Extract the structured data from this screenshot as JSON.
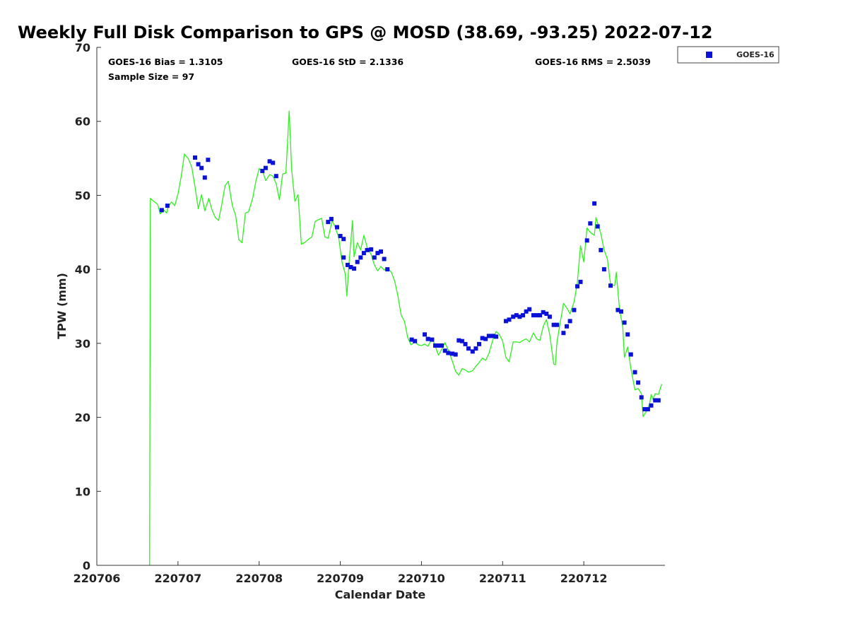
{
  "chart_data": {
    "type": "scatter",
    "title": "Weekly Full Disk Comparison to GPS @ MOSD (38.69, -93.25) 2022-07-12",
    "xlabel": "Calendar Date",
    "ylabel": "TPW (mm)",
    "xlim": [
      0,
      7
    ],
    "ylim": [
      0,
      70
    ],
    "x_tick_labels": [
      "220706",
      "220707",
      "220708",
      "220709",
      "220710",
      "220711",
      "220712"
    ],
    "x_tick_positions": [
      0,
      1,
      2,
      3,
      4,
      5,
      6
    ],
    "y_ticks": [
      0,
      10,
      20,
      30,
      40,
      50,
      60,
      70
    ],
    "stats": {
      "bias": "GOES-16 Bias = 1.3105",
      "std": "GOES-16 StD = 2.1336",
      "rms": "GOES-16 RMS = 2.5039",
      "sample": "Sample Size = 97"
    },
    "legend": {
      "label": "GOES-16",
      "position": "top-right-outside"
    },
    "colors": {
      "goes": "#0a12d8",
      "gps": "#2ef01f"
    },
    "series": [
      {
        "name": "GOES-16",
        "marker": "square",
        "points": [
          [
            0.8,
            48.0
          ],
          [
            0.87,
            48.6
          ],
          [
            1.21,
            55.1
          ],
          [
            1.25,
            54.2
          ],
          [
            1.29,
            53.7
          ],
          [
            1.33,
            52.4
          ],
          [
            1.37,
            54.8
          ],
          [
            2.04,
            53.3
          ],
          [
            2.08,
            53.7
          ],
          [
            2.13,
            54.6
          ],
          [
            2.17,
            54.4
          ],
          [
            2.21,
            52.6
          ],
          [
            2.85,
            46.4
          ],
          [
            2.89,
            46.8
          ],
          [
            2.96,
            45.7
          ],
          [
            3.0,
            44.5
          ],
          [
            3.04,
            44.1
          ],
          [
            3.04,
            41.6
          ],
          [
            3.09,
            40.6
          ],
          [
            3.13,
            40.3
          ],
          [
            3.17,
            40.1
          ],
          [
            3.21,
            41.0
          ],
          [
            3.25,
            41.6
          ],
          [
            3.29,
            42.2
          ],
          [
            3.33,
            42.6
          ],
          [
            3.38,
            42.7
          ],
          [
            3.42,
            41.6
          ],
          [
            3.46,
            42.2
          ],
          [
            3.5,
            42.4
          ],
          [
            3.54,
            41.4
          ],
          [
            3.58,
            40.0
          ],
          [
            3.88,
            30.5
          ],
          [
            3.92,
            30.3
          ],
          [
            4.04,
            31.2
          ],
          [
            4.08,
            30.6
          ],
          [
            4.13,
            30.5
          ],
          [
            4.17,
            29.7
          ],
          [
            4.21,
            29.7
          ],
          [
            4.25,
            29.7
          ],
          [
            4.29,
            29.0
          ],
          [
            4.33,
            28.7
          ],
          [
            4.38,
            28.6
          ],
          [
            4.42,
            28.5
          ],
          [
            4.46,
            30.4
          ],
          [
            4.5,
            30.3
          ],
          [
            4.54,
            29.9
          ],
          [
            4.58,
            29.3
          ],
          [
            4.63,
            28.9
          ],
          [
            4.67,
            29.3
          ],
          [
            4.71,
            29.9
          ],
          [
            4.75,
            30.7
          ],
          [
            4.79,
            30.6
          ],
          [
            4.83,
            31.0
          ],
          [
            4.88,
            31.0
          ],
          [
            4.92,
            30.9
          ],
          [
            5.04,
            33.0
          ],
          [
            5.08,
            33.2
          ],
          [
            5.13,
            33.6
          ],
          [
            5.17,
            33.8
          ],
          [
            5.21,
            33.6
          ],
          [
            5.25,
            33.8
          ],
          [
            5.29,
            34.3
          ],
          [
            5.33,
            34.6
          ],
          [
            5.38,
            33.8
          ],
          [
            5.42,
            33.8
          ],
          [
            5.46,
            33.8
          ],
          [
            5.5,
            34.2
          ],
          [
            5.54,
            34.0
          ],
          [
            5.58,
            33.6
          ],
          [
            5.63,
            32.5
          ],
          [
            5.67,
            32.5
          ],
          [
            5.75,
            31.4
          ],
          [
            5.79,
            32.3
          ],
          [
            5.83,
            33.0
          ],
          [
            5.88,
            34.5
          ],
          [
            5.92,
            37.7
          ],
          [
            5.96,
            38.3
          ],
          [
            6.04,
            43.9
          ],
          [
            6.08,
            46.2
          ],
          [
            6.13,
            48.9
          ],
          [
            6.17,
            45.8
          ],
          [
            6.21,
            42.6
          ],
          [
            6.25,
            40.0
          ],
          [
            6.33,
            37.8
          ],
          [
            6.42,
            34.5
          ],
          [
            6.46,
            34.3
          ],
          [
            6.5,
            32.8
          ],
          [
            6.54,
            31.2
          ],
          [
            6.58,
            28.5
          ],
          [
            6.63,
            26.1
          ],
          [
            6.67,
            24.7
          ],
          [
            6.71,
            22.7
          ],
          [
            6.75,
            21.1
          ],
          [
            6.79,
            21.1
          ],
          [
            6.83,
            21.6
          ],
          [
            6.88,
            22.3
          ],
          [
            6.92,
            22.3
          ]
        ]
      },
      {
        "name": "GPS",
        "line": true,
        "points": [
          [
            0.65,
            0.0
          ],
          [
            0.66,
            49.6
          ],
          [
            0.7,
            49.2
          ],
          [
            0.75,
            48.8
          ],
          [
            0.78,
            47.5
          ],
          [
            0.83,
            48.0
          ],
          [
            0.86,
            47.6
          ],
          [
            0.88,
            48.5
          ],
          [
            0.92,
            49.1
          ],
          [
            0.96,
            48.6
          ],
          [
            1.0,
            50.2
          ],
          [
            1.04,
            52.6
          ],
          [
            1.08,
            55.6
          ],
          [
            1.13,
            54.9
          ],
          [
            1.17,
            53.8
          ],
          [
            1.21,
            51.1
          ],
          [
            1.25,
            48.2
          ],
          [
            1.29,
            50.1
          ],
          [
            1.33,
            47.9
          ],
          [
            1.38,
            49.6
          ],
          [
            1.42,
            48.0
          ],
          [
            1.46,
            47.0
          ],
          [
            1.5,
            46.6
          ],
          [
            1.54,
            48.8
          ],
          [
            1.58,
            51.3
          ],
          [
            1.62,
            51.9
          ],
          [
            1.67,
            48.6
          ],
          [
            1.71,
            47.3
          ],
          [
            1.75,
            44.0
          ],
          [
            1.79,
            43.6
          ],
          [
            1.83,
            47.6
          ],
          [
            1.87,
            47.8
          ],
          [
            1.92,
            49.6
          ],
          [
            1.96,
            51.9
          ],
          [
            2.0,
            53.6
          ],
          [
            2.04,
            53.4
          ],
          [
            2.08,
            52.0
          ],
          [
            2.13,
            52.8
          ],
          [
            2.17,
            52.6
          ],
          [
            2.21,
            51.6
          ],
          [
            2.25,
            49.4
          ],
          [
            2.29,
            52.9
          ],
          [
            2.33,
            53.0
          ],
          [
            2.37,
            61.4
          ],
          [
            2.4,
            53.5
          ],
          [
            2.44,
            49.2
          ],
          [
            2.48,
            50.1
          ],
          [
            2.52,
            43.4
          ],
          [
            2.56,
            43.6
          ],
          [
            2.6,
            44.0
          ],
          [
            2.65,
            44.4
          ],
          [
            2.69,
            46.5
          ],
          [
            2.73,
            46.7
          ],
          [
            2.77,
            46.9
          ],
          [
            2.81,
            44.4
          ],
          [
            2.85,
            44.2
          ],
          [
            2.9,
            46.6
          ],
          [
            2.94,
            45.6
          ],
          [
            2.98,
            44.3
          ],
          [
            3.02,
            41.0
          ],
          [
            3.06,
            39.4
          ],
          [
            3.08,
            36.4
          ],
          [
            3.11,
            41.2
          ],
          [
            3.13,
            43.8
          ],
          [
            3.15,
            46.6
          ],
          [
            3.17,
            41.7
          ],
          [
            3.21,
            43.6
          ],
          [
            3.25,
            42.6
          ],
          [
            3.29,
            44.6
          ],
          [
            3.33,
            43.0
          ],
          [
            3.38,
            42.0
          ],
          [
            3.42,
            40.6
          ],
          [
            3.46,
            39.8
          ],
          [
            3.5,
            40.4
          ],
          [
            3.54,
            39.9
          ],
          [
            3.58,
            40.2
          ],
          [
            3.63,
            39.6
          ],
          [
            3.67,
            38.4
          ],
          [
            3.71,
            36.4
          ],
          [
            3.75,
            33.8
          ],
          [
            3.79,
            33.0
          ],
          [
            3.83,
            30.8
          ],
          [
            3.87,
            29.8
          ],
          [
            3.92,
            30.2
          ],
          [
            3.96,
            29.8
          ],
          [
            4.0,
            29.7
          ],
          [
            4.04,
            29.9
          ],
          [
            4.08,
            29.6
          ],
          [
            4.13,
            30.7
          ],
          [
            4.17,
            29.6
          ],
          [
            4.21,
            28.4
          ],
          [
            4.25,
            29.2
          ],
          [
            4.29,
            30.1
          ],
          [
            4.33,
            29.1
          ],
          [
            4.38,
            27.6
          ],
          [
            4.42,
            26.2
          ],
          [
            4.46,
            25.7
          ],
          [
            4.5,
            26.6
          ],
          [
            4.54,
            26.4
          ],
          [
            4.58,
            26.1
          ],
          [
            4.63,
            26.3
          ],
          [
            4.67,
            26.9
          ],
          [
            4.71,
            27.4
          ],
          [
            4.75,
            28.0
          ],
          [
            4.79,
            27.7
          ],
          [
            4.83,
            28.6
          ],
          [
            4.88,
            30.5
          ],
          [
            4.92,
            31.6
          ],
          [
            4.96,
            31.2
          ],
          [
            5.0,
            30.3
          ],
          [
            5.04,
            28.1
          ],
          [
            5.08,
            27.5
          ],
          [
            5.13,
            30.2
          ],
          [
            5.17,
            30.2
          ],
          [
            5.21,
            30.1
          ],
          [
            5.25,
            30.4
          ],
          [
            5.29,
            30.6
          ],
          [
            5.33,
            30.2
          ],
          [
            5.38,
            31.4
          ],
          [
            5.42,
            30.6
          ],
          [
            5.46,
            30.4
          ],
          [
            5.5,
            32.3
          ],
          [
            5.54,
            33.2
          ],
          [
            5.58,
            31.2
          ],
          [
            5.63,
            27.2
          ],
          [
            5.65,
            27.1
          ],
          [
            5.67,
            30.2
          ],
          [
            5.71,
            32.8
          ],
          [
            5.75,
            35.4
          ],
          [
            5.79,
            34.8
          ],
          [
            5.83,
            34.0
          ],
          [
            5.88,
            35.6
          ],
          [
            5.92,
            38.2
          ],
          [
            5.96,
            43.2
          ],
          [
            6.0,
            41.0
          ],
          [
            6.04,
            45.6
          ],
          [
            6.08,
            45.0
          ],
          [
            6.13,
            44.6
          ],
          [
            6.15,
            47.0
          ],
          [
            6.21,
            44.8
          ],
          [
            6.25,
            42.6
          ],
          [
            6.29,
            41.4
          ],
          [
            6.33,
            38.0
          ],
          [
            6.38,
            37.8
          ],
          [
            6.4,
            39.6
          ],
          [
            6.44,
            34.6
          ],
          [
            6.48,
            32.2
          ],
          [
            6.5,
            28.1
          ],
          [
            6.54,
            29.5
          ],
          [
            6.58,
            26.6
          ],
          [
            6.63,
            23.7
          ],
          [
            6.67,
            23.9
          ],
          [
            6.71,
            23.2
          ],
          [
            6.73,
            20.1
          ],
          [
            6.77,
            20.8
          ],
          [
            6.81,
            21.8
          ],
          [
            6.83,
            23.1
          ],
          [
            6.85,
            22.4
          ],
          [
            6.88,
            23.2
          ],
          [
            6.92,
            23.1
          ],
          [
            6.96,
            24.5
          ]
        ]
      }
    ]
  }
}
